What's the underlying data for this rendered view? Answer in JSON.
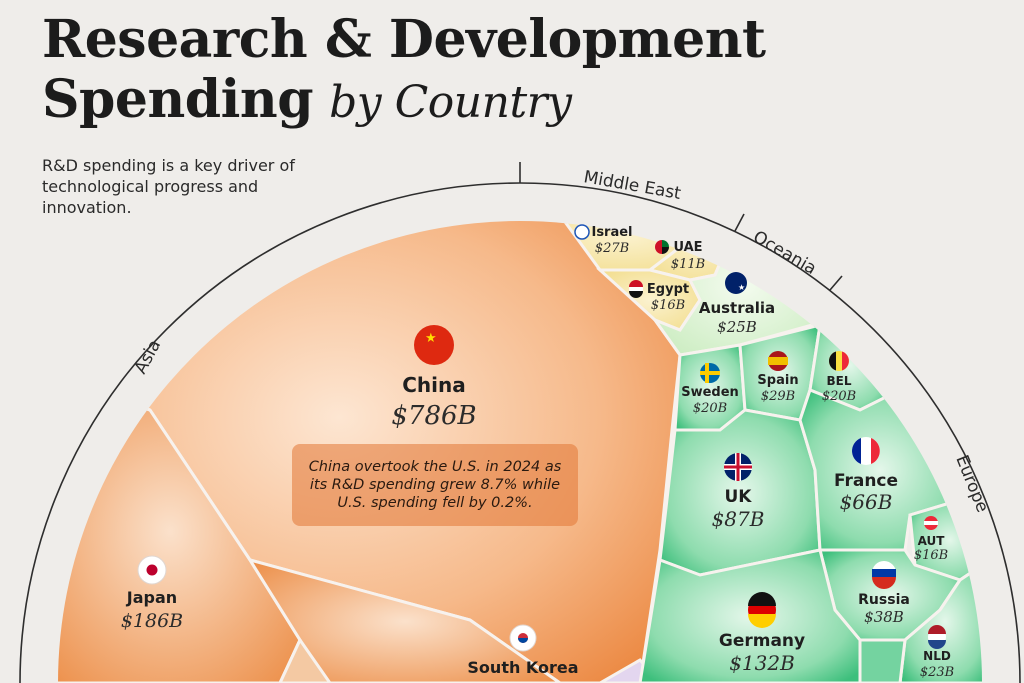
{
  "header": {
    "title_line1": "Research & Development",
    "title_line2_bold": "Spending",
    "title_line2_italic": "by Country",
    "intro": "R&D spending is a key driver of technological progress and innovation."
  },
  "regions": [
    "Asia",
    "Middle East",
    "Oceania",
    "Europe"
  ],
  "note": "China overtook the U.S. in 2024 as its R&D spending grew 8.7% while U.S. spending fell by 0.2%.",
  "colors": {
    "asia": "#f0a468",
    "asia_light": "#fbe0c8",
    "middle_east": "#f6e6a6",
    "oceania": "#dff2d4",
    "europe": "#3fbf7f",
    "europe_light": "#bfead0",
    "note_box": "#e27634"
  },
  "chart_data": {
    "type": "voronoi-treemap",
    "unit": "$B",
    "cells": [
      {
        "region": "Asia",
        "name": "China",
        "value": 786,
        "label": "$786B",
        "flag": "china-flag-icon"
      },
      {
        "region": "Asia",
        "name": "Japan",
        "value": 186,
        "label": "$186B",
        "flag": "japan-flag-icon"
      },
      {
        "region": "Asia",
        "name": "South Korea",
        "value": null,
        "label": "",
        "flag": "south-korea-flag-icon"
      },
      {
        "region": "Middle East",
        "name": "Israel",
        "value": 27,
        "label": "$27B",
        "flag": "israel-flag-icon"
      },
      {
        "region": "Middle East",
        "name": "UAE",
        "value": 11,
        "label": "$11B",
        "flag": "uae-flag-icon"
      },
      {
        "region": "Middle East",
        "name": "Egypt",
        "value": 16,
        "label": "$16B",
        "flag": "egypt-flag-icon"
      },
      {
        "region": "Oceania",
        "name": "Australia",
        "value": 25,
        "label": "$25B",
        "flag": "australia-flag-icon"
      },
      {
        "region": "Europe",
        "name": "Sweden",
        "value": 20,
        "label": "$20B",
        "flag": "sweden-flag-icon"
      },
      {
        "region": "Europe",
        "name": "Spain",
        "value": 29,
        "label": "$29B",
        "flag": "spain-flag-icon"
      },
      {
        "region": "Europe",
        "name": "BEL",
        "value": 20,
        "label": "$20B",
        "flag": "belgium-flag-icon"
      },
      {
        "region": "Europe",
        "name": "UK",
        "value": 87,
        "label": "$87B",
        "flag": "uk-flag-icon"
      },
      {
        "region": "Europe",
        "name": "France",
        "value": 66,
        "label": "$66B",
        "flag": "france-flag-icon"
      },
      {
        "region": "Europe",
        "name": "AUT",
        "value": 16,
        "label": "$16B",
        "flag": "austria-flag-icon"
      },
      {
        "region": "Europe",
        "name": "Russia",
        "value": 38,
        "label": "$38B",
        "flag": "russia-flag-icon"
      },
      {
        "region": "Europe",
        "name": "Germany",
        "value": 132,
        "label": "$132B",
        "flag": "germany-flag-icon"
      },
      {
        "region": "Europe",
        "name": "NLD",
        "value": 23,
        "label": "$23B",
        "flag": "netherlands-flag-icon"
      }
    ]
  }
}
